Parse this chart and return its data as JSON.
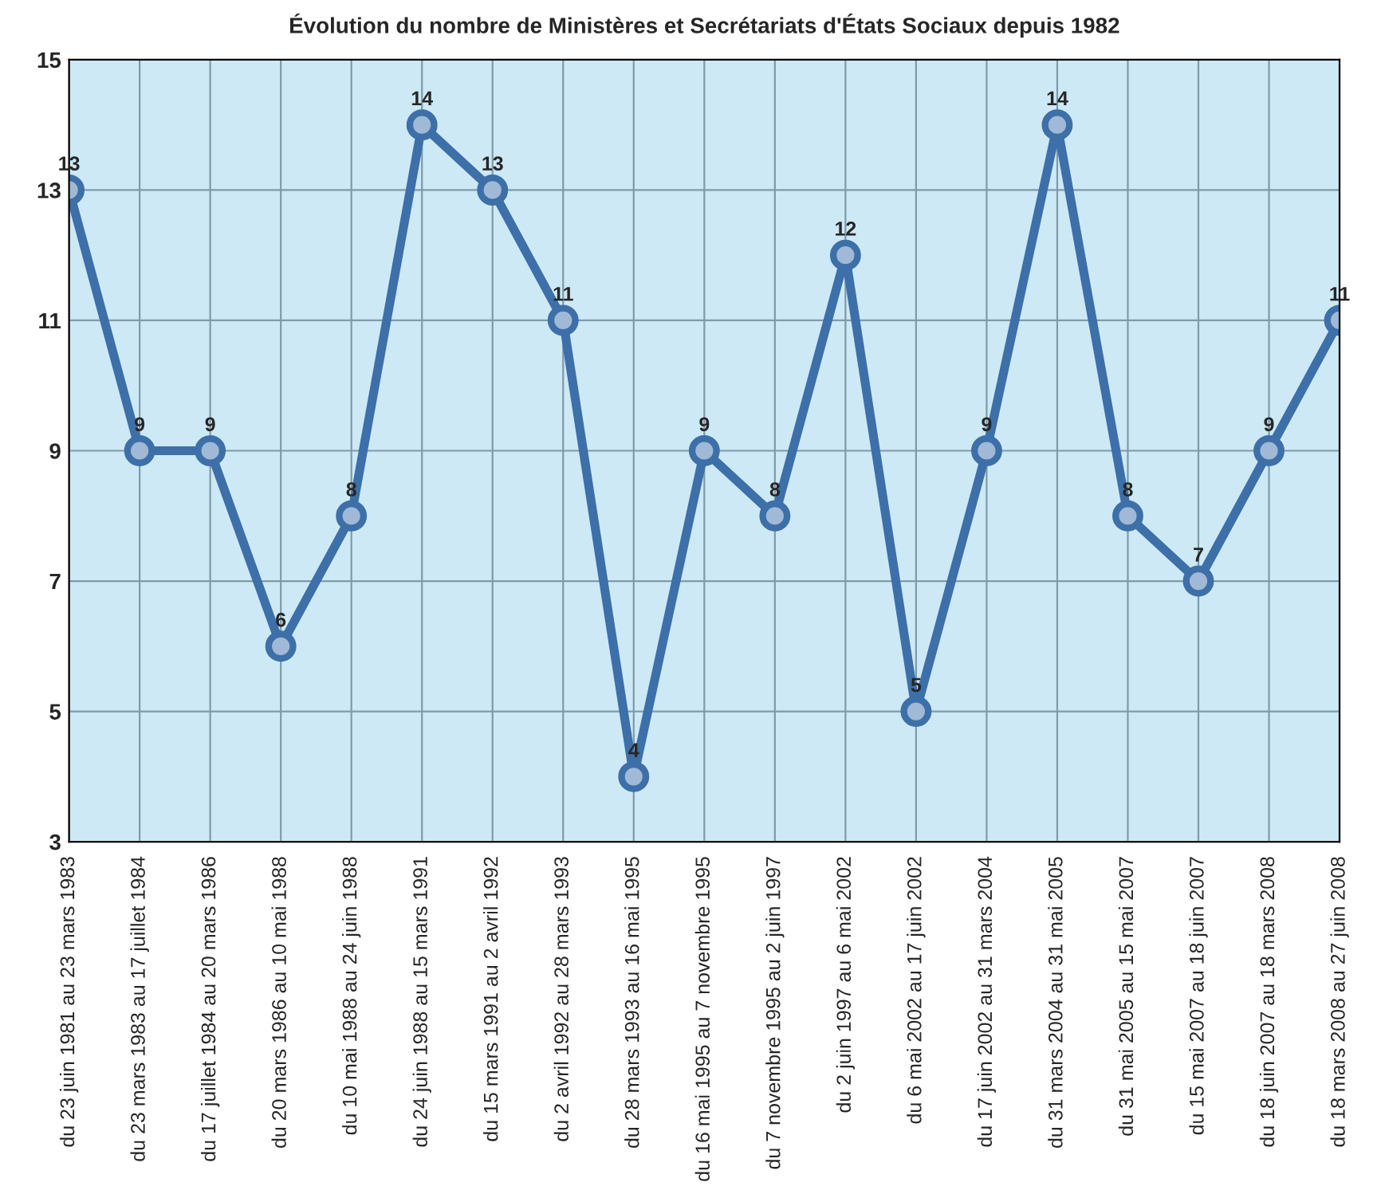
{
  "chart_data": {
    "type": "line",
    "title": "Évolution du nombre de Ministères et Secrétariats d'États Sociaux depuis 1982",
    "categories": [
      "du 23 juin 1981 au 23 mars 1983",
      "du 23 mars 1983 au 17 juillet 1984",
      "du 17 juillet 1984 au 20 mars 1986",
      "du 20 mars 1986 au 10 mai 1988",
      "du 10 mai 1988 au 24 juin 1988",
      "du 24 juin 1988 au 15 mars 1991",
      "du 15 mars 1991 au 2 avril 1992",
      "du 2 avril 1992 au 28 mars 1993",
      "du 28 mars 1993 au 16 mai 1995",
      "du 16 mai 1995 au 7 novembre 1995",
      "du 7 novembre 1995 au 2 juin 1997",
      "du 2 juin 1997 au 6 mai 2002",
      "du 6 mai 2002 au 17 juin 2002",
      "du 17 juin 2002 au 31 mars 2004",
      "du 31 mars 2004 au 31 mai 2005",
      "du 31 mai 2005 au 15 mai 2007",
      "du 15 mai 2007 au 18 juin 2007",
      "du 18 juin 2007 au 18 mars 2008",
      "du 18 mars 2008 au 27 juin 2008"
    ],
    "series": [
      {
        "color": "#3d6fa8",
        "values": [
          13,
          9,
          9,
          6,
          8,
          14,
          13,
          11,
          4,
          9,
          8,
          12,
          5,
          9,
          14,
          8,
          7,
          9,
          11
        ]
      }
    ],
    "ylim": [
      3,
      15
    ],
    "yticks": [
      3,
      5,
      7,
      9,
      11,
      13,
      15
    ],
    "grid": true,
    "marker": "circle",
    "line_style": "solid",
    "data_labels": true
  }
}
